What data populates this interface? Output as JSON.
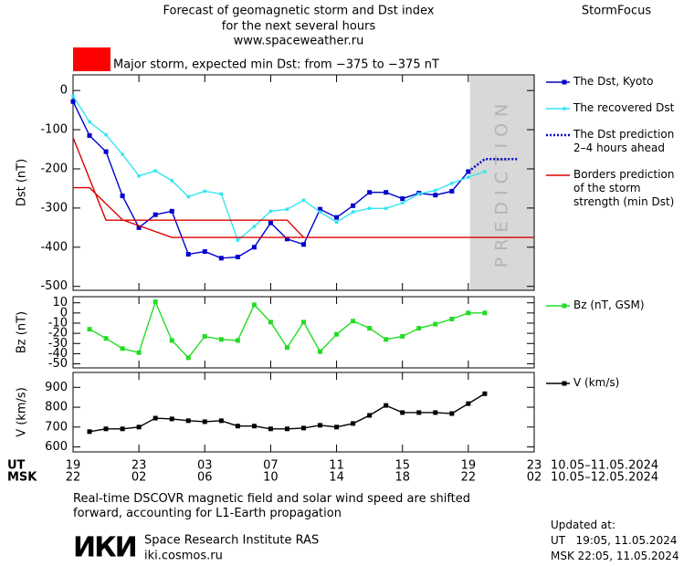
{
  "header": {
    "title_lines": [
      "Forecast of geomagnetic storm and Dst index",
      "for the next several hours",
      "www.spaceweather.ru"
    ],
    "brand": "StormFocus",
    "storm_level": {
      "color": "#ff0000",
      "label": "Major storm, expected min Dst: from −375 to −375 nT"
    }
  },
  "chart_data": [
    {
      "type": "line",
      "ylabel": "Dst (nT)",
      "ylim": [
        -510,
        40
      ],
      "yticks": [
        0,
        -100,
        -200,
        -300,
        -400,
        -500
      ],
      "prediction_zone": [
        24.1,
        28
      ],
      "prediction_label": "PREDICTION",
      "series": [
        {
          "name": "The Dst, Kyoto",
          "color": "#0000cc",
          "marker": "square",
          "x": [
            0,
            1,
            2,
            3,
            4,
            5,
            6,
            7,
            8,
            9,
            10,
            11,
            12,
            13,
            14,
            15,
            16,
            17,
            18,
            19,
            20,
            21,
            22,
            23,
            24
          ],
          "values": [
            -28,
            -115,
            -156,
            -269,
            -350,
            -317,
            -308,
            -418,
            -411,
            -428,
            -425,
            -400,
            -338,
            -379,
            -393,
            -303,
            -324,
            -294,
            -260,
            -260,
            -276,
            -262,
            -267,
            -257,
            -207
          ]
        },
        {
          "name": "The recovered Dst",
          "color": "#33e6f0",
          "marker": "small-square",
          "x": [
            0,
            1,
            2,
            3,
            4,
            5,
            6,
            7,
            8,
            9,
            10,
            11,
            12,
            13,
            14,
            15,
            16,
            17,
            18,
            19,
            20,
            21,
            22,
            23,
            24,
            25
          ],
          "values": [
            -14,
            -80,
            -113,
            -163,
            -218,
            -205,
            -230,
            -271,
            -257,
            -264,
            -382,
            -347,
            -308,
            -303,
            -280,
            -310,
            -336,
            -310,
            -301,
            -301,
            -287,
            -264,
            -255,
            -237,
            -221,
            -207
          ]
        },
        {
          "name": "The Dst prediction\n2–4 hours ahead",
          "color": "#0000cc",
          "style": "dotted",
          "x": [
            24,
            25,
            27
          ],
          "values": [
            -207,
            -175,
            -175
          ]
        },
        {
          "name": "Borders prediction\nof the storm\nstrength (min Dst)",
          "color": "#dd0000",
          "x": [
            0,
            2,
            13,
            14,
            null,
            0,
            1,
            3,
            6,
            28
          ],
          "values": [
            -120,
            -331,
            -331,
            -375,
            null,
            -248,
            -248,
            -330,
            -375,
            -375
          ]
        }
      ]
    },
    {
      "type": "line",
      "ylabel": "Bz (nT)",
      "ylim": [
        -54,
        16
      ],
      "yticks": [
        10,
        0,
        -10,
        -20,
        -30,
        -40,
        -50
      ],
      "series": [
        {
          "name": "Bz (nT, GSM)",
          "color": "#22dd22",
          "marker": "square",
          "x": [
            1,
            2,
            3,
            4,
            5,
            6,
            7,
            8,
            9,
            10,
            11,
            12,
            13,
            14,
            15,
            16,
            17,
            18,
            19,
            20,
            21,
            22,
            23,
            24,
            25
          ],
          "values": [
            -16,
            -25,
            -35,
            -39,
            11,
            -27,
            -44,
            -23,
            -26,
            -27,
            8,
            -9,
            -34,
            -9,
            -38,
            -21,
            -8,
            -15,
            -26,
            -23,
            -15,
            -11,
            -6,
            0,
            0
          ]
        }
      ]
    },
    {
      "type": "line",
      "ylabel": "V (km/s)",
      "ylim": [
        575,
        975
      ],
      "yticks": [
        600,
        700,
        800,
        900
      ],
      "xlim": [
        0,
        28
      ],
      "xticks": [
        {
          "value": 0,
          "label": "19"
        },
        {
          "value": 4,
          "label": "23"
        },
        {
          "value": 8,
          "label": "03"
        },
        {
          "value": 12,
          "label": "07"
        },
        {
          "value": 16,
          "label": "11"
        },
        {
          "value": 20,
          "label": "15"
        },
        {
          "value": 24,
          "label": "19"
        },
        {
          "value": 28,
          "label": "23"
        }
      ],
      "xtick_labels_msk": [
        "22",
        "02",
        "06",
        "10",
        "14",
        "18",
        "22",
        "02"
      ],
      "xaxis_ut_label": "UT",
      "xaxis_msk_label": "MSK",
      "ut_range": "10.05–11.05.2024",
      "msk_range": "10.05–12.05.2024",
      "series": [
        {
          "name": "V (km/s)",
          "color": "#000000",
          "marker": "square",
          "x": [
            1,
            2,
            3,
            4,
            5,
            6,
            7,
            8,
            9,
            10,
            11,
            12,
            13,
            14,
            15,
            16,
            17,
            18,
            19,
            20,
            21,
            22,
            23,
            24,
            25
          ],
          "values": [
            677,
            691,
            691,
            700,
            745,
            741,
            732,
            727,
            732,
            705,
            705,
            691,
            691,
            695,
            709,
            700,
            718,
            759,
            809,
            773,
            773,
            773,
            768,
            818,
            868
          ]
        }
      ]
    }
  ],
  "footer": {
    "note": "Real-time DSCOVR magnetic field and solar wind speed are shifted\nforward, accounting for L1-Earth propagation",
    "logo": "ИКИ",
    "institute": "Space Research Institute RAS",
    "site": "iki.cosmos.ru",
    "updated_label": "Updated at:",
    "updated_ut": "UT   19:05, 11.05.2024",
    "updated_msk": "MSK 22:05, 11.05.2024"
  }
}
